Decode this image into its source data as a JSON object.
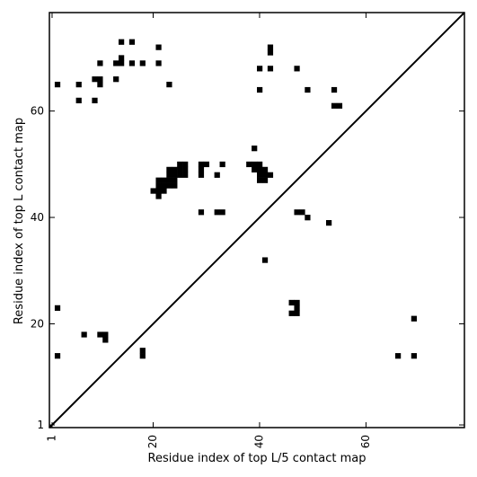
{
  "chart_data": {
    "type": "heatmap",
    "xlabel": "Residue index of top L/5 contact map",
    "ylabel": "Residue index of top L contact map",
    "xlim": [
      0.5,
      78.5
    ],
    "ylim": [
      0.5,
      78.5
    ],
    "xticks": [
      1,
      20,
      40,
      60
    ],
    "yticks": [
      1,
      20,
      40,
      60
    ],
    "tick_labels": {
      "x": [
        "1",
        "20",
        "40",
        "60"
      ],
      "y": [
        "1",
        "20",
        "40",
        "60"
      ]
    },
    "diagonal": true,
    "colors": {
      "cell": "#000000",
      "background": "#ffffff",
      "axis": "#000000"
    },
    "upper_triangle_cells": [
      [
        2,
        65
      ],
      [
        6,
        65
      ],
      [
        6,
        62
      ],
      [
        9,
        62
      ],
      [
        9,
        66
      ],
      [
        10,
        66
      ],
      [
        10,
        65
      ],
      [
        10,
        69
      ],
      [
        13,
        66
      ],
      [
        13,
        69
      ],
      [
        14,
        69
      ],
      [
        14,
        70
      ],
      [
        14,
        73
      ],
      [
        16,
        69
      ],
      [
        16,
        73
      ],
      [
        18,
        69
      ],
      [
        21,
        69
      ],
      [
        21,
        72
      ],
      [
        23,
        65
      ],
      [
        20,
        45
      ],
      [
        21,
        44
      ],
      [
        21,
        45
      ],
      [
        21,
        46
      ],
      [
        21,
        47
      ],
      [
        22,
        45
      ],
      [
        22,
        46
      ],
      [
        22,
        47
      ],
      [
        23,
        46
      ],
      [
        23,
        47
      ],
      [
        23,
        48
      ],
      [
        23,
        49
      ],
      [
        24,
        46
      ],
      [
        24,
        47
      ],
      [
        24,
        48
      ],
      [
        24,
        49
      ],
      [
        25,
        48
      ],
      [
        25,
        49
      ],
      [
        26,
        48
      ],
      [
        26,
        49
      ],
      [
        26,
        50
      ],
      [
        25,
        50
      ],
      [
        29,
        41
      ],
      [
        29,
        48
      ],
      [
        29,
        49
      ],
      [
        29,
        50
      ],
      [
        30,
        50
      ],
      [
        32,
        48
      ],
      [
        32,
        41
      ],
      [
        33,
        41
      ],
      [
        33,
        50
      ],
      [
        38,
        50
      ],
      [
        39,
        49
      ],
      [
        39,
        50
      ],
      [
        39,
        53
      ],
      [
        40,
        47
      ],
      [
        40,
        48
      ],
      [
        40,
        49
      ],
      [
        40,
        50
      ],
      [
        41,
        32
      ],
      [
        41,
        47
      ],
      [
        41,
        48
      ],
      [
        41,
        49
      ],
      [
        42,
        48
      ],
      [
        40,
        64
      ],
      [
        40,
        68
      ],
      [
        42,
        68
      ],
      [
        42,
        71
      ],
      [
        42,
        72
      ],
      [
        47,
        68
      ],
      [
        46,
        22
      ],
      [
        46,
        24
      ],
      [
        47,
        22
      ],
      [
        47,
        23
      ],
      [
        47,
        24
      ],
      [
        47,
        41
      ],
      [
        48,
        41
      ],
      [
        49,
        40
      ],
      [
        49,
        64
      ],
      [
        53,
        39
      ],
      [
        54,
        64
      ],
      [
        54,
        61
      ],
      [
        55,
        61
      ]
    ],
    "lower_triangle_cells": [
      [
        2,
        23
      ],
      [
        7,
        18
      ],
      [
        10,
        18
      ],
      [
        11,
        18
      ],
      [
        11,
        17
      ],
      [
        2,
        14
      ],
      [
        18,
        14
      ],
      [
        18,
        15
      ],
      [
        69,
        21
      ],
      [
        66,
        14
      ],
      [
        69,
        14
      ]
    ]
  }
}
